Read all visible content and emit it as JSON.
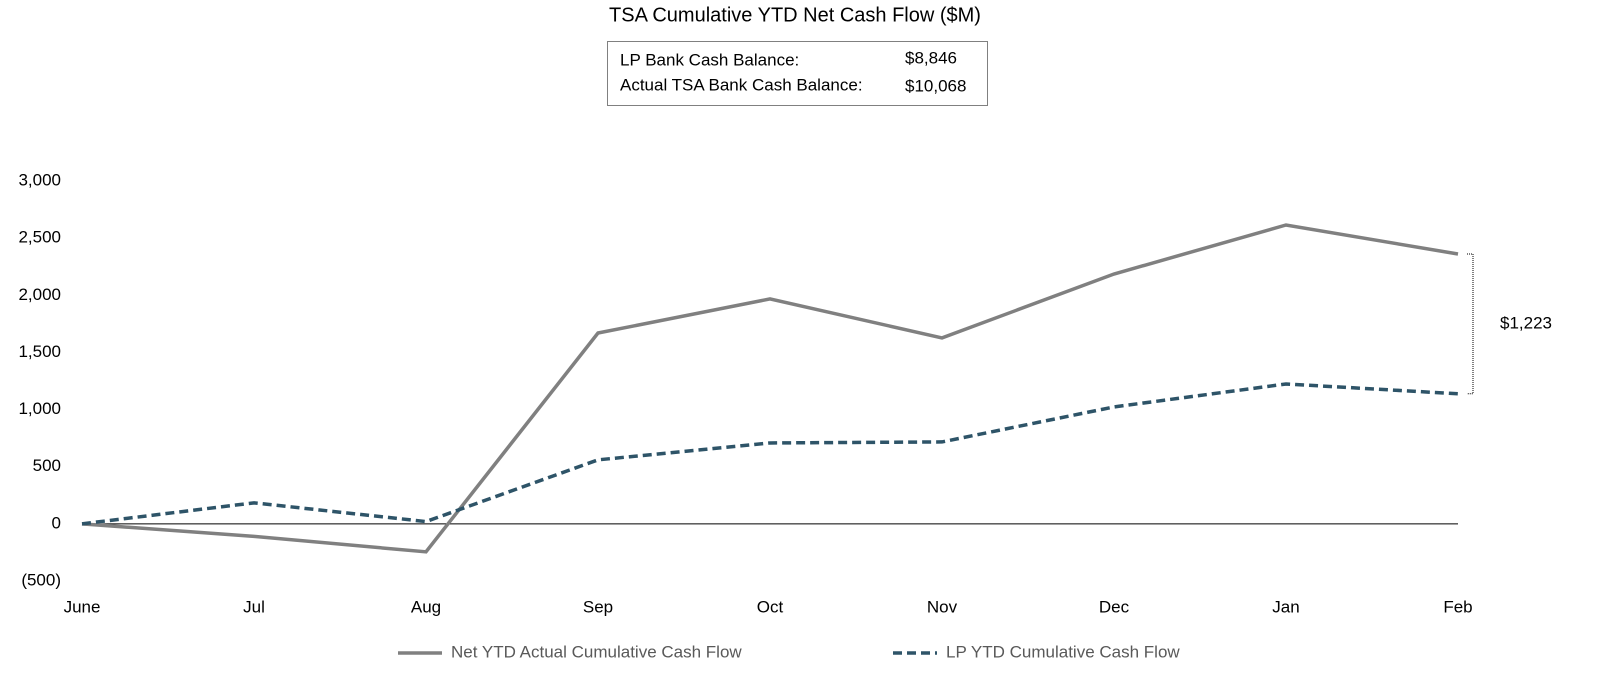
{
  "chart_data": {
    "type": "line",
    "title": "TSA Cumulative YTD Net Cash Flow ($M)",
    "info_box": [
      {
        "label": "LP Bank Cash Balance:",
        "value": "$8,846"
      },
      {
        "label": "Actual TSA Bank Cash Balance:",
        "value": "$10,068"
      }
    ],
    "categories": [
      "June",
      "Jul",
      "Aug",
      "Sep",
      "Oct",
      "Nov",
      "Dec",
      "Jan",
      "Feb"
    ],
    "series": [
      {
        "name": "Net YTD Actual Cumulative Cash Flow",
        "color": "#808080",
        "dashed": false,
        "values": [
          0,
          -110,
          -245,
          1670,
          1968,
          1627,
          2186,
          2615,
          2361
        ]
      },
      {
        "name": "LP YTD Cumulative Cash Flow",
        "color": "#2e5468",
        "dashed": true,
        "values": [
          0,
          184,
          20,
          560,
          708,
          717,
          1023,
          1224,
          1138
        ]
      }
    ],
    "annotation": "$1,223",
    "ylim": [
      -500,
      3000
    ],
    "yticks": [
      {
        "value": -500,
        "label": "(500)"
      },
      0,
      500,
      {
        "value": 1000,
        "label": "1,000"
      },
      {
        "value": 1500,
        "label": "1,500"
      },
      {
        "value": 2000,
        "label": "2,000"
      },
      {
        "value": 2500,
        "label": "2,500"
      },
      {
        "value": 3000,
        "label": "3,000"
      }
    ],
    "grid": false
  }
}
